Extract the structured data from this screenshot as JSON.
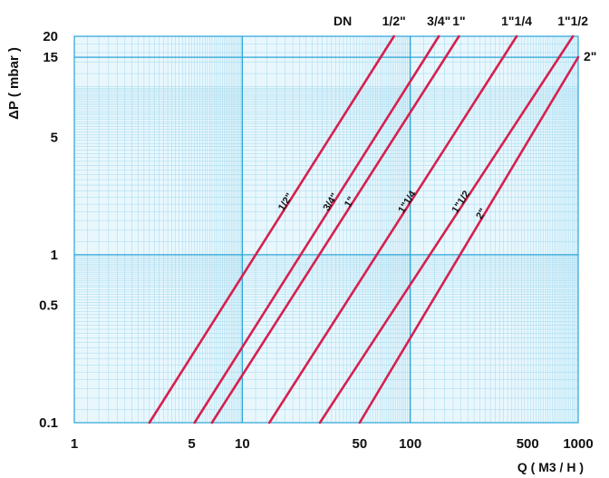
{
  "chart_data": {
    "type": "line",
    "title": "",
    "xlabel": "Q ( M3 / H )",
    "ylabel": "ΔP ( mbar )",
    "x_scale": "log",
    "y_scale": "log",
    "xlim": [
      1,
      1000
    ],
    "ylim": [
      0.1,
      20
    ],
    "grid": true,
    "x_ticks": [
      {
        "value": 1,
        "label": "1"
      },
      {
        "value": 5,
        "label": "5"
      },
      {
        "value": 10,
        "label": "10"
      },
      {
        "value": 50,
        "label": "50"
      },
      {
        "value": 100,
        "label": "100"
      },
      {
        "value": 500,
        "label": "500"
      },
      {
        "value": 1000,
        "label": "1000"
      }
    ],
    "y_ticks": [
      {
        "value": 0.1,
        "label": "0.1"
      },
      {
        "value": 0.5,
        "label": "0.5"
      },
      {
        "value": 1,
        "label": "1"
      },
      {
        "value": 5,
        "label": "5"
      },
      {
        "value": 15,
        "label": "15"
      },
      {
        "value": 20,
        "label": "20"
      }
    ],
    "legend_title": "DN",
    "series": [
      {
        "name": "1/2\"",
        "label": "1/2\"",
        "points": [
          [
            2.8,
            0.1
          ],
          [
            80,
            20
          ]
        ]
      },
      {
        "name": "3/4\"",
        "label": "3/4\"",
        "points": [
          [
            5.2,
            0.1
          ],
          [
            148,
            20
          ]
        ]
      },
      {
        "name": "1\"",
        "label": "1\"",
        "points": [
          [
            6.6,
            0.1
          ],
          [
            195,
            20
          ]
        ]
      },
      {
        "name": "1\"1/4",
        "label": "1\"1/4",
        "points": [
          [
            14.5,
            0.1
          ],
          [
            430,
            20
          ]
        ]
      },
      {
        "name": "1\"1/2",
        "label": "1\"1/2",
        "points": [
          [
            29,
            0.1
          ],
          [
            930,
            20
          ]
        ]
      },
      {
        "name": "2\"",
        "label": "2\"",
        "points": [
          [
            50,
            0.1
          ],
          [
            1000,
            15
          ]
        ]
      }
    ],
    "line_color": "#d6204f",
    "grid_major_color": "#2aa3d6",
    "grid_minor_color": "#9fd8ee"
  }
}
